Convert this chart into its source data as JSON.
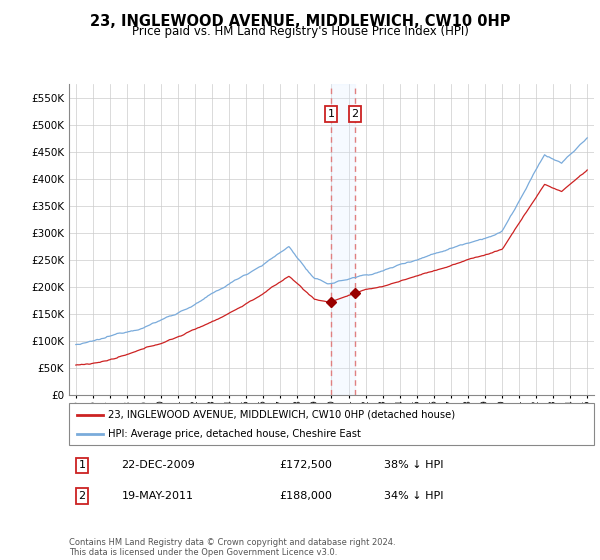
{
  "title": "23, INGLEWOOD AVENUE, MIDDLEWICH, CW10 0HP",
  "subtitle": "Price paid vs. HM Land Registry's House Price Index (HPI)",
  "legend_line1": "23, INGLEWOOD AVENUE, MIDDLEWICH, CW10 0HP (detached house)",
  "legend_line2": "HPI: Average price, detached house, Cheshire East",
  "annotation1_label": "1",
  "annotation1_date": "22-DEC-2009",
  "annotation1_price": "£172,500",
  "annotation1_hpi": "38% ↓ HPI",
  "annotation2_label": "2",
  "annotation2_date": "19-MAY-2011",
  "annotation2_price": "£188,000",
  "annotation2_hpi": "34% ↓ HPI",
  "footer": "Contains HM Land Registry data © Crown copyright and database right 2024.\nThis data is licensed under the Open Government Licence v3.0.",
  "sale1_year": 2009.97,
  "sale2_year": 2011.38,
  "sale1_price": 172500,
  "sale2_price": 188000,
  "red_line_color": "#cc2222",
  "blue_line_color": "#7aabdb",
  "marker_color": "#990000",
  "vline_color": "#e08080",
  "highlight_color": "#ddeeff",
  "ylim": [
    0,
    575000
  ],
  "yticks": [
    0,
    50000,
    100000,
    150000,
    200000,
    250000,
    300000,
    350000,
    400000,
    450000,
    500000,
    550000
  ],
  "background_color": "#ffffff",
  "grid_color": "#cccccc",
  "xstart": 1995,
  "xend": 2025
}
